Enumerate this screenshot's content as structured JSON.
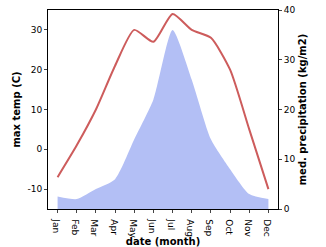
{
  "chart_data": {
    "type": "line",
    "x_label": "date (month)",
    "y_label": "max temp (C)",
    "y2_label": "med. precipitation (kg/m2)",
    "categories": [
      "Jan",
      "Feb",
      "Mar",
      "Apr",
      "May",
      "Jun",
      "Jul",
      "Aug",
      "Sep",
      "Oct",
      "Nov",
      "Dec"
    ],
    "series": [
      {
        "type": "area",
        "axis": "y2",
        "color": "#b3bff5",
        "values": [
          2.5,
          2,
          4,
          6,
          14,
          22,
          36,
          26,
          14,
          8,
          3,
          2
        ]
      },
      {
        "type": "line",
        "color": "#cd5c5c",
        "values": [
          -7,
          1,
          10,
          21,
          30,
          27,
          34,
          30,
          28,
          20,
          5,
          -10
        ]
      }
    ],
    "ylim": [
      -15,
      35
    ],
    "yticks": [
      -10,
      0,
      10,
      20,
      30
    ],
    "y2lim": [
      0,
      40
    ],
    "y2ticks": [
      0,
      10,
      20,
      30,
      40
    ],
    "grid": false
  }
}
